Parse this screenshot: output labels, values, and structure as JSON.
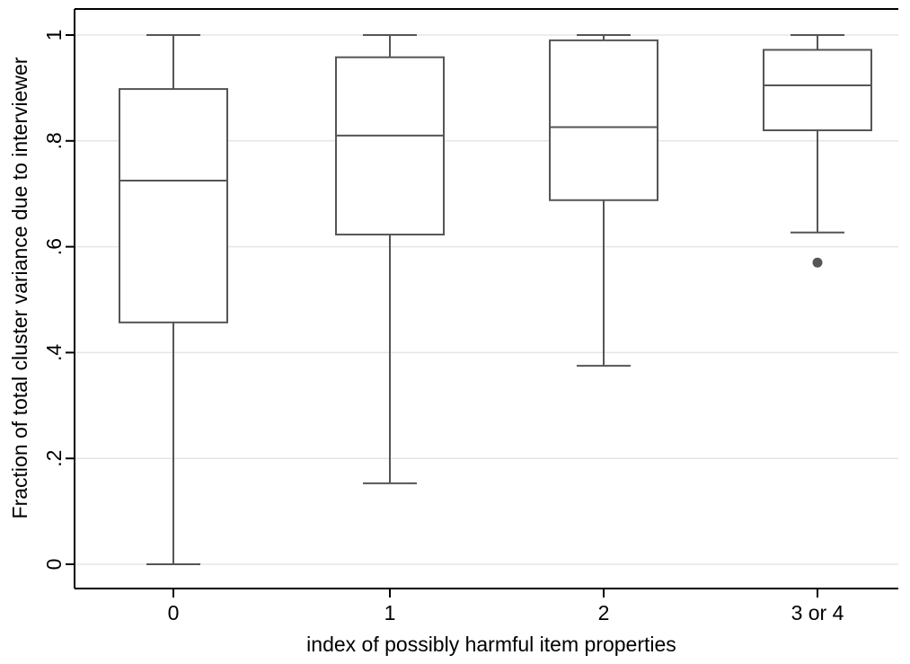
{
  "chart_data": {
    "type": "box",
    "title": "",
    "xlabel": "index of possibly harmful item properties",
    "ylabel": "Fraction of total cluster variance due to interviewer",
    "ylim": [
      -0.04,
      1.05
    ],
    "yticks": [
      0,
      0.2,
      0.4,
      0.6,
      0.8,
      1
    ],
    "ytick_labels": [
      "0",
      ".2",
      ".4",
      ".6",
      ".8",
      "1"
    ],
    "grid": true,
    "categories": [
      "0",
      "1",
      "2",
      "3 or 4"
    ],
    "boxes": [
      {
        "category": "0",
        "whisker_low": 0.0,
        "q1": 0.457,
        "median": 0.725,
        "q3": 0.898,
        "whisker_high": 1.0,
        "outliers": []
      },
      {
        "category": "1",
        "whisker_low": 0.153,
        "q1": 0.623,
        "median": 0.81,
        "q3": 0.958,
        "whisker_high": 1.0,
        "outliers": []
      },
      {
        "category": "2",
        "whisker_low": 0.375,
        "q1": 0.688,
        "median": 0.826,
        "q3": 0.99,
        "whisker_high": 1.0,
        "outliers": []
      },
      {
        "category": "3 or 4",
        "whisker_low": 0.627,
        "q1": 0.82,
        "median": 0.905,
        "q3": 0.972,
        "whisker_high": 1.0,
        "outliers": [
          0.57
        ]
      }
    ],
    "colors": {
      "box_stroke": "#555555",
      "grid": "#e5e5e5",
      "axis": "#000000",
      "outlier": "#555555"
    }
  }
}
